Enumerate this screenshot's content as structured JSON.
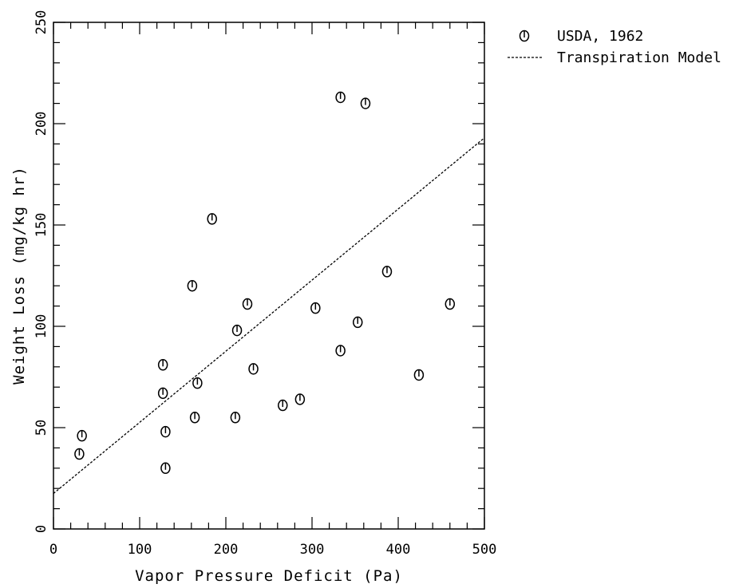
{
  "chart_data": {
    "type": "scatter",
    "xlabel": "Vapor Pressure Deficit (Pa)",
    "ylabel": "Weight Loss (mg/kg hr)",
    "xlim": [
      0,
      500
    ],
    "ylim": [
      0,
      250
    ],
    "x_ticks": [
      0,
      100,
      200,
      300,
      400,
      500
    ],
    "y_ticks": [
      0,
      50,
      100,
      150,
      200,
      250
    ],
    "x_tick_labels": [
      "0",
      "100",
      "200",
      "300",
      "400",
      "500"
    ],
    "y_tick_labels": [
      "0",
      "50",
      "100",
      "150",
      "200",
      "250"
    ],
    "grid": false,
    "legend_position": "outside-top-right",
    "series": [
      {
        "name": "USDA, 1962",
        "kind": "scatter",
        "marker": "circle-with-vertical-bar",
        "points": [
          {
            "x": 30,
            "y": 37
          },
          {
            "x": 33,
            "y": 46
          },
          {
            "x": 127,
            "y": 81
          },
          {
            "x": 127,
            "y": 67
          },
          {
            "x": 130,
            "y": 48
          },
          {
            "x": 130,
            "y": 30
          },
          {
            "x": 161,
            "y": 120
          },
          {
            "x": 164,
            "y": 55
          },
          {
            "x": 167,
            "y": 72
          },
          {
            "x": 184,
            "y": 153
          },
          {
            "x": 211,
            "y": 55
          },
          {
            "x": 213,
            "y": 98
          },
          {
            "x": 225,
            "y": 111
          },
          {
            "x": 232,
            "y": 79
          },
          {
            "x": 266,
            "y": 61
          },
          {
            "x": 286,
            "y": 64
          },
          {
            "x": 304,
            "y": 109
          },
          {
            "x": 333,
            "y": 213
          },
          {
            "x": 333,
            "y": 88
          },
          {
            "x": 353,
            "y": 102
          },
          {
            "x": 362,
            "y": 210
          },
          {
            "x": 387,
            "y": 127
          },
          {
            "x": 424,
            "y": 76
          },
          {
            "x": 460,
            "y": 111
          }
        ]
      },
      {
        "name": "Transpiration Model",
        "kind": "line",
        "line_style": "dashed",
        "points": [
          {
            "x": 0,
            "y": 17.5
          },
          {
            "x": 500,
            "y": 193
          }
        ]
      }
    ]
  }
}
